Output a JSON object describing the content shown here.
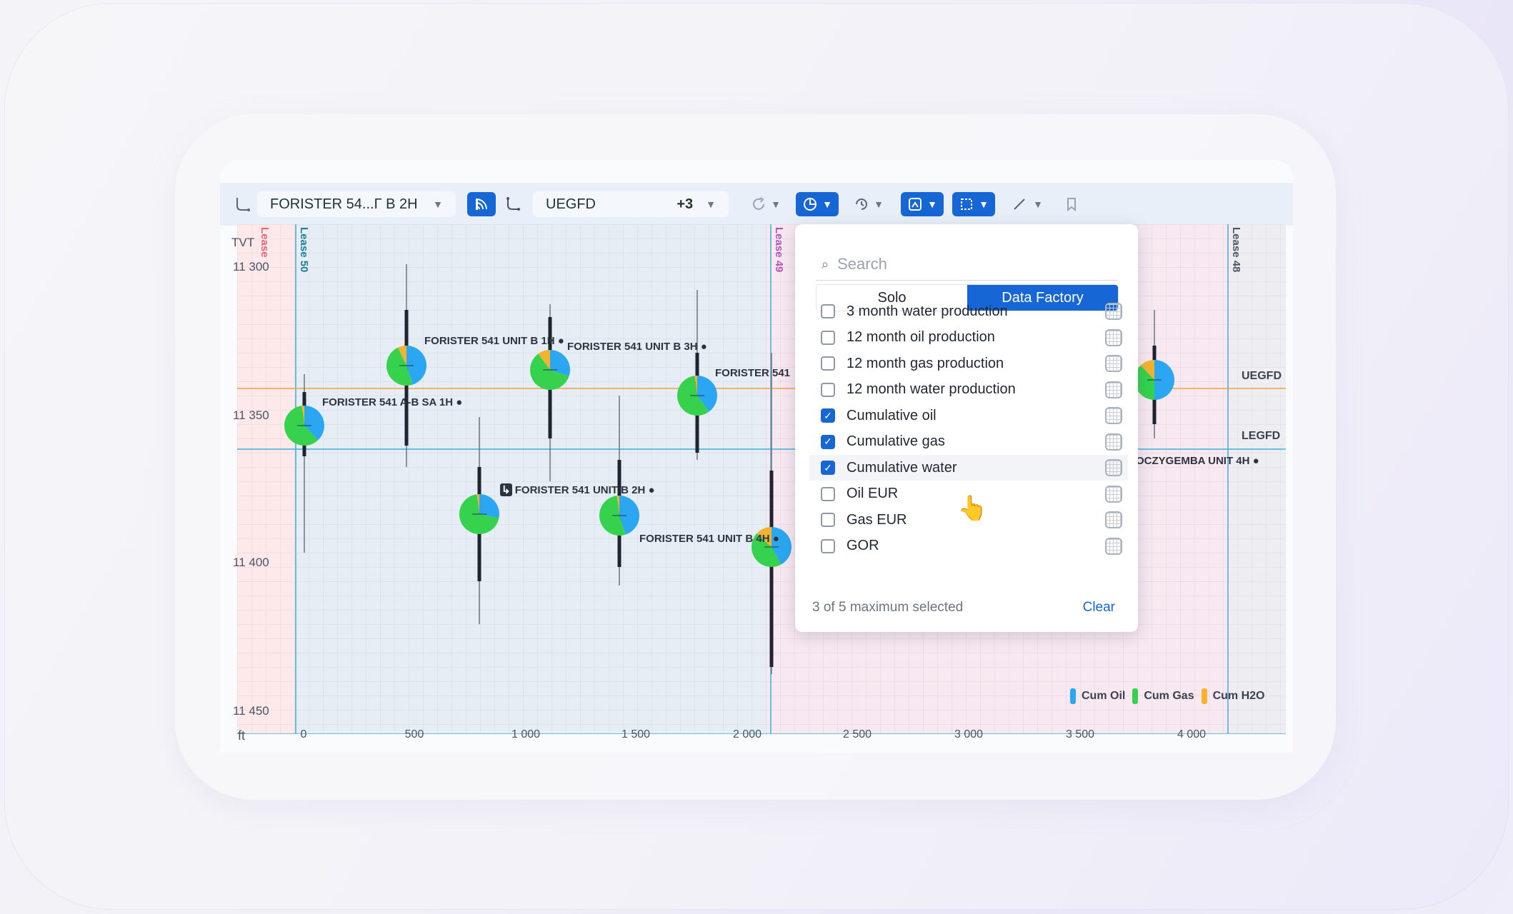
{
  "toolbar": {
    "well_select": "FORISTER 54...Γ B 2H",
    "formation_select": "UEGFD",
    "formation_extra": "+3"
  },
  "dropdown": {
    "search_placeholder": "Search",
    "tabs": [
      "Solo",
      "Data Factory"
    ],
    "active_tab": "Data Factory",
    "items": [
      {
        "label": "3 month water production",
        "checked": false
      },
      {
        "label": "12 month oil production",
        "checked": false
      },
      {
        "label": "12 month gas production",
        "checked": false
      },
      {
        "label": "12 month water production",
        "checked": false
      },
      {
        "label": "Cumulative oil",
        "checked": true
      },
      {
        "label": "Cumulative gas",
        "checked": true
      },
      {
        "label": "Cumulative water",
        "checked": true
      },
      {
        "label": "Oil EUR",
        "checked": false
      },
      {
        "label": "Gas EUR",
        "checked": false
      },
      {
        "label": "GOR",
        "checked": false
      }
    ],
    "footer": "3 of 5 maximum selected",
    "clear_label": "Clear"
  },
  "chart": {
    "y_axis_label": "TVT",
    "x_axis_unit": "ft",
    "y_ticks": [
      "11 300",
      "11 350",
      "11 400",
      "11 450"
    ],
    "x_ticks": [
      "0",
      "500",
      "1 000",
      "1 500",
      "2 000",
      "2 500",
      "3 000",
      "3 500",
      "4 000"
    ],
    "leases": [
      "Lease",
      "Lease 50",
      "Lease 49",
      "Lease 48"
    ],
    "horizons": [
      "UEGFD",
      "LEGFD"
    ],
    "wells": [
      "FORISTER 541 A-B SA 1H",
      "FORISTER 541 UNIT B 1H",
      "FORISTER 541 UNIT B 3H",
      "FORISTER 541",
      "FORISTER 541 UNIT B 2H",
      "FORISTER 541 UNIT B 4H",
      "OCZYGEMBA UNIT 4H"
    ],
    "legend": [
      {
        "label": "Cum Oil",
        "color": "#2aa7f0"
      },
      {
        "label": "Cum Gas",
        "color": "#36d24e"
      },
      {
        "label": "Cum H2O",
        "color": "#f5b22e"
      }
    ]
  },
  "colors": {
    "accent": "#1766d6",
    "oil": "#2aa7f0",
    "gas": "#36d24e",
    "water": "#f5b22e"
  }
}
